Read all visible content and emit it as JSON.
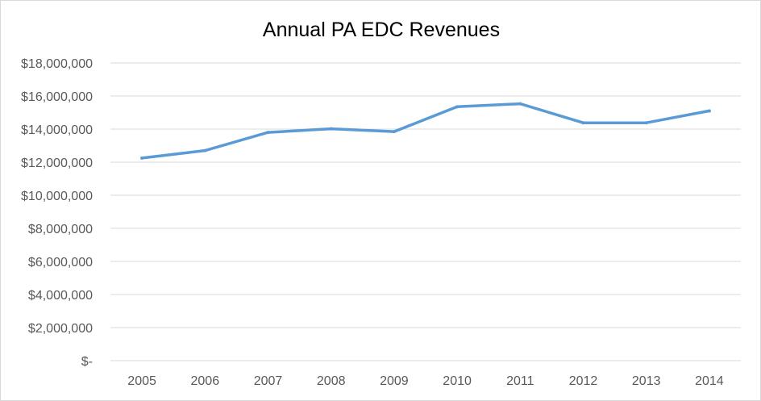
{
  "chart_data": {
    "type": "line",
    "title": "Annual PA EDC Revenues",
    "xlabel": "",
    "ylabel": "",
    "categories": [
      "2005",
      "2006",
      "2007",
      "2008",
      "2009",
      "2010",
      "2011",
      "2012",
      "2013",
      "2014"
    ],
    "series": [
      {
        "values": [
          12250000,
          12700000,
          13800000,
          14020000,
          13850000,
          15350000,
          15530000,
          14380000,
          14380000,
          15100000
        ]
      }
    ],
    "ylim": [
      0,
      18000000
    ],
    "y_tick_labels": [
      "$-",
      "$2,000,000",
      "$4,000,000",
      "$6,000,000",
      "$8,000,000",
      "$10,000,000",
      "$12,000,000",
      "$14,000,000",
      "$16,000,000",
      "$18,000,000"
    ],
    "grid": "horizontal",
    "legend": "none",
    "colors": {
      "line": "#5b9bd5",
      "grid": "#d9d9d9",
      "tick_text": "#595959",
      "title_text": "#000000"
    }
  }
}
